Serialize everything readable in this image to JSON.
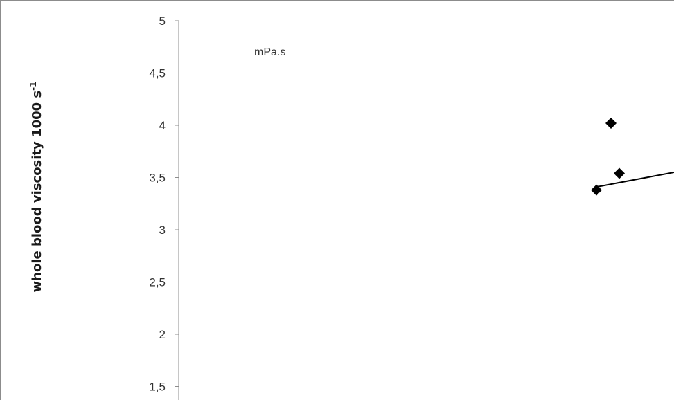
{
  "chart_data": {
    "type": "scatter",
    "title": "",
    "ylabel": "whole blood viscosity 1000 s",
    "ylabel_superscript": "-1",
    "unit_annotation": "mPa.s",
    "ylim": [
      1.5,
      5
    ],
    "yticks": [
      "1,5",
      "2",
      "2,5",
      "3",
      "3,5",
      "4",
      "4,5",
      "5"
    ],
    "ytick_values": [
      1.5,
      2,
      2.5,
      3,
      3.5,
      4,
      4.5,
      5
    ],
    "grid": false,
    "legend": "none",
    "marker": "diamond",
    "marker_color": "#000000",
    "points": [
      {
        "y": 4.02
      },
      {
        "y": 3.54
      },
      {
        "y": 3.38
      }
    ],
    "trendline": {
      "y_start": 3.41,
      "y_end": 3.55
    }
  }
}
